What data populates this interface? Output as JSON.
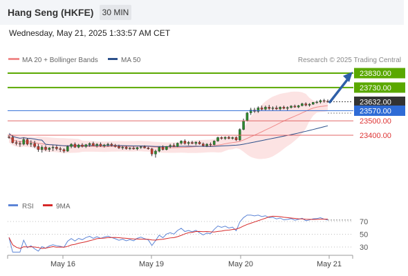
{
  "header": {
    "title": "Hang Seng (HKFE)",
    "timeframe": "30 MIN"
  },
  "datetime": "Wednesday, May 21, 2025 1:33:57 AM CET",
  "legend": {
    "bollinger": "MA 20 + Bollinger Bands",
    "ma50": "MA 50",
    "credit": "Research © 2025 Trading Central"
  },
  "rsi_legend": {
    "rsi": "RSI",
    "ma": "9MA"
  },
  "colors": {
    "bollinger": "#f08a8a",
    "ma50": "#2b4f8a",
    "target": "#5aa800",
    "pivot": "#2e6bd6",
    "support": "#e06666",
    "last": "#333333",
    "candle_up": "#2d8a2d",
    "candle_down": "#c0392b",
    "rsi": "#5b84d6",
    "rsi_ma": "#d62828"
  },
  "chart_data": {
    "type": "candlestick",
    "x_ticks": [
      "May 16",
      "May 19",
      "May 20",
      "May 21"
    ],
    "ylim": [
      23270,
      23890
    ],
    "price_levels": [
      {
        "label": "23830.00",
        "value": 23830,
        "role": "target"
      },
      {
        "label": "23730.00",
        "value": 23730,
        "role": "target"
      },
      {
        "label": "23632.00",
        "value": 23632,
        "role": "last"
      },
      {
        "label": "23570.00",
        "value": 23570,
        "role": "pivot"
      },
      {
        "label": "23500.00",
        "value": 23500,
        "role": "support"
      },
      {
        "label": "23400.00",
        "value": 23400,
        "role": "support"
      }
    ],
    "candles": [
      {
        "o": 23389,
        "h": 23403,
        "l": 23376,
        "c": 23386
      },
      {
        "o": 23386,
        "h": 23398,
        "l": 23343,
        "c": 23349
      },
      {
        "o": 23349,
        "h": 23365,
        "l": 23330,
        "c": 23343
      },
      {
        "o": 23343,
        "h": 23360,
        "l": 23320,
        "c": 23338
      },
      {
        "o": 23338,
        "h": 23385,
        "l": 23330,
        "c": 23371
      },
      {
        "o": 23371,
        "h": 23380,
        "l": 23330,
        "c": 23338
      },
      {
        "o": 23338,
        "h": 23365,
        "l": 23319,
        "c": 23343
      },
      {
        "o": 23343,
        "h": 23362,
        "l": 23312,
        "c": 23322
      },
      {
        "o": 23322,
        "h": 23340,
        "l": 23285,
        "c": 23301
      },
      {
        "o": 23301,
        "h": 23330,
        "l": 23280,
        "c": 23317
      },
      {
        "o": 23317,
        "h": 23330,
        "l": 23290,
        "c": 23301
      },
      {
        "o": 23301,
        "h": 23318,
        "l": 23285,
        "c": 23312
      },
      {
        "o": 23312,
        "h": 23330,
        "l": 23290,
        "c": 23317
      },
      {
        "o": 23317,
        "h": 23330,
        "l": 23295,
        "c": 23307
      },
      {
        "o": 23307,
        "h": 23320,
        "l": 23285,
        "c": 23301
      },
      {
        "o": 23301,
        "h": 23310,
        "l": 23278,
        "c": 23290
      },
      {
        "o": 23290,
        "h": 23330,
        "l": 23285,
        "c": 23322
      },
      {
        "o": 23322,
        "h": 23345,
        "l": 23310,
        "c": 23338
      },
      {
        "o": 23338,
        "h": 23350,
        "l": 23312,
        "c": 23317
      },
      {
        "o": 23317,
        "h": 23340,
        "l": 23310,
        "c": 23333
      },
      {
        "o": 23333,
        "h": 23345,
        "l": 23315,
        "c": 23322
      },
      {
        "o": 23322,
        "h": 23340,
        "l": 23312,
        "c": 23335
      },
      {
        "o": 23335,
        "h": 23350,
        "l": 23320,
        "c": 23343
      },
      {
        "o": 23343,
        "h": 23355,
        "l": 23325,
        "c": 23328
      },
      {
        "o": 23328,
        "h": 23345,
        "l": 23315,
        "c": 23338
      },
      {
        "o": 23338,
        "h": 23350,
        "l": 23320,
        "c": 23326
      },
      {
        "o": 23326,
        "h": 23340,
        "l": 23315,
        "c": 23333
      },
      {
        "o": 23333,
        "h": 23348,
        "l": 23320,
        "c": 23338
      },
      {
        "o": 23338,
        "h": 23348,
        "l": 23322,
        "c": 23330
      },
      {
        "o": 23330,
        "h": 23340,
        "l": 23315,
        "c": 23322
      },
      {
        "o": 23322,
        "h": 23335,
        "l": 23305,
        "c": 23312
      },
      {
        "o": 23312,
        "h": 23325,
        "l": 23300,
        "c": 23317
      },
      {
        "o": 23317,
        "h": 23328,
        "l": 23300,
        "c": 23307
      },
      {
        "o": 23307,
        "h": 23318,
        "l": 23298,
        "c": 23312
      },
      {
        "o": 23312,
        "h": 23322,
        "l": 23300,
        "c": 23305
      },
      {
        "o": 23305,
        "h": 23320,
        "l": 23296,
        "c": 23315
      },
      {
        "o": 23315,
        "h": 23325,
        "l": 23305,
        "c": 23320
      },
      {
        "o": 23320,
        "h": 23330,
        "l": 23308,
        "c": 23312
      },
      {
        "o": 23312,
        "h": 23320,
        "l": 23300,
        "c": 23306
      },
      {
        "o": 23306,
        "h": 23312,
        "l": 23255,
        "c": 23270
      },
      {
        "o": 23270,
        "h": 23300,
        "l": 23245,
        "c": 23290
      },
      {
        "o": 23290,
        "h": 23322,
        "l": 23282,
        "c": 23317
      },
      {
        "o": 23317,
        "h": 23330,
        "l": 23295,
        "c": 23301
      },
      {
        "o": 23301,
        "h": 23325,
        "l": 23295,
        "c": 23322
      },
      {
        "o": 23322,
        "h": 23340,
        "l": 23310,
        "c": 23330
      },
      {
        "o": 23330,
        "h": 23345,
        "l": 23318,
        "c": 23322
      },
      {
        "o": 23322,
        "h": 23350,
        "l": 23318,
        "c": 23345
      },
      {
        "o": 23345,
        "h": 23365,
        "l": 23335,
        "c": 23360
      },
      {
        "o": 23360,
        "h": 23372,
        "l": 23335,
        "c": 23343
      },
      {
        "o": 23343,
        "h": 23360,
        "l": 23330,
        "c": 23350
      },
      {
        "o": 23350,
        "h": 23362,
        "l": 23338,
        "c": 23343
      },
      {
        "o": 23343,
        "h": 23358,
        "l": 23330,
        "c": 23352
      },
      {
        "o": 23352,
        "h": 23362,
        "l": 23335,
        "c": 23340
      },
      {
        "o": 23340,
        "h": 23350,
        "l": 23320,
        "c": 23328
      },
      {
        "o": 23328,
        "h": 23345,
        "l": 23318,
        "c": 23338
      },
      {
        "o": 23338,
        "h": 23350,
        "l": 23320,
        "c": 23335
      },
      {
        "o": 23335,
        "h": 23365,
        "l": 23330,
        "c": 23360
      },
      {
        "o": 23360,
        "h": 23390,
        "l": 23355,
        "c": 23384
      },
      {
        "o": 23384,
        "h": 23392,
        "l": 23370,
        "c": 23378
      },
      {
        "o": 23378,
        "h": 23392,
        "l": 23368,
        "c": 23386
      },
      {
        "o": 23386,
        "h": 23395,
        "l": 23372,
        "c": 23378
      },
      {
        "o": 23378,
        "h": 23390,
        "l": 23370,
        "c": 23384
      },
      {
        "o": 23384,
        "h": 23392,
        "l": 23360,
        "c": 23368
      },
      {
        "o": 23368,
        "h": 23448,
        "l": 23360,
        "c": 23440
      },
      {
        "o": 23440,
        "h": 23515,
        "l": 23435,
        "c": 23500
      },
      {
        "o": 23500,
        "h": 23560,
        "l": 23495,
        "c": 23555
      },
      {
        "o": 23555,
        "h": 23590,
        "l": 23540,
        "c": 23575
      },
      {
        "o": 23575,
        "h": 23590,
        "l": 23555,
        "c": 23565
      },
      {
        "o": 23565,
        "h": 23600,
        "l": 23555,
        "c": 23590
      },
      {
        "o": 23590,
        "h": 23605,
        "l": 23570,
        "c": 23580
      },
      {
        "o": 23580,
        "h": 23605,
        "l": 23572,
        "c": 23595
      },
      {
        "o": 23595,
        "h": 23610,
        "l": 23575,
        "c": 23585
      },
      {
        "o": 23585,
        "h": 23600,
        "l": 23572,
        "c": 23590
      },
      {
        "o": 23590,
        "h": 23605,
        "l": 23575,
        "c": 23582
      },
      {
        "o": 23582,
        "h": 23600,
        "l": 23570,
        "c": 23595
      },
      {
        "o": 23595,
        "h": 23605,
        "l": 23580,
        "c": 23586
      },
      {
        "o": 23586,
        "h": 23600,
        "l": 23572,
        "c": 23592
      },
      {
        "o": 23592,
        "h": 23608,
        "l": 23585,
        "c": 23602
      },
      {
        "o": 23602,
        "h": 23612,
        "l": 23590,
        "c": 23595
      },
      {
        "o": 23595,
        "h": 23610,
        "l": 23588,
        "c": 23605
      },
      {
        "o": 23605,
        "h": 23625,
        "l": 23600,
        "c": 23618
      },
      {
        "o": 23618,
        "h": 23628,
        "l": 23600,
        "c": 23608
      },
      {
        "o": 23608,
        "h": 23622,
        "l": 23598,
        "c": 23615
      },
      {
        "o": 23615,
        "h": 23630,
        "l": 23610,
        "c": 23628
      },
      {
        "o": 23628,
        "h": 23640,
        "l": 23618,
        "c": 23630
      },
      {
        "o": 23630,
        "h": 23648,
        "l": 23620,
        "c": 23640
      },
      {
        "o": 23640,
        "h": 23652,
        "l": 23625,
        "c": 23635
      },
      {
        "o": 23635,
        "h": 23648,
        "l": 23625,
        "c": 23632
      }
    ],
    "rsi": {
      "ylim": [
        20,
        80
      ],
      "gridlines": [
        70,
        50,
        30
      ],
      "tick_labels": [
        "70",
        "50",
        "30"
      ]
    }
  }
}
